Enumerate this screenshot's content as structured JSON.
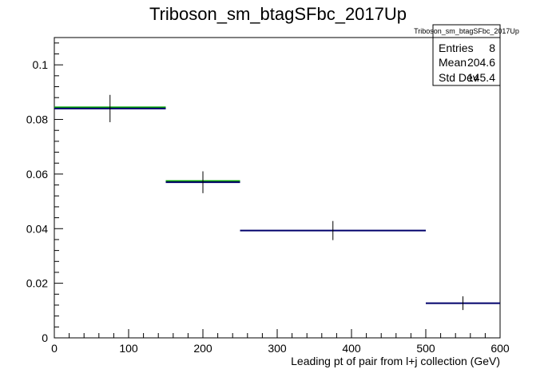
{
  "chart_data": {
    "type": "histogram",
    "title": "Triboson_sm_btagSFbc_2017Up",
    "xlabel": "Leading pt of pair from l+j collection (GeV)",
    "ylabel": "",
    "xlim": [
      0,
      600
    ],
    "ylim": [
      0,
      0.11
    ],
    "x_ticks": [
      0,
      100,
      200,
      300,
      400,
      500,
      600
    ],
    "y_ticks": [
      0,
      0.02,
      0.04,
      0.06,
      0.08,
      0.1
    ],
    "x_tick_labels": [
      "0",
      "100",
      "200",
      "300",
      "400",
      "500",
      "600"
    ],
    "y_tick_labels": [
      "0",
      "0.02",
      "0.04",
      "0.06",
      "0.08",
      "0.1"
    ],
    "bins": [
      {
        "low": 0,
        "high": 150,
        "value": 0.084,
        "err": 0.005,
        "center": 75
      },
      {
        "low": 150,
        "high": 250,
        "value": 0.057,
        "err": 0.004,
        "center": 200
      },
      {
        "low": 250,
        "high": 500,
        "value": 0.0393,
        "err": 0.0035,
        "center": 375
      },
      {
        "low": 500,
        "high": 600,
        "value": 0.0127,
        "err": 0.0025,
        "center": 550
      }
    ],
    "colors": {
      "line": "#00006b",
      "band": "#00a000",
      "frame": "#000000"
    },
    "stats": {
      "name": "Triboson_sm_btagSFbc_2017Up",
      "rows": [
        {
          "label": "Entries",
          "value": "8"
        },
        {
          "label": "Mean",
          "value": "204.6"
        },
        {
          "label": "Std Dev",
          "value": "145.4"
        }
      ]
    }
  }
}
